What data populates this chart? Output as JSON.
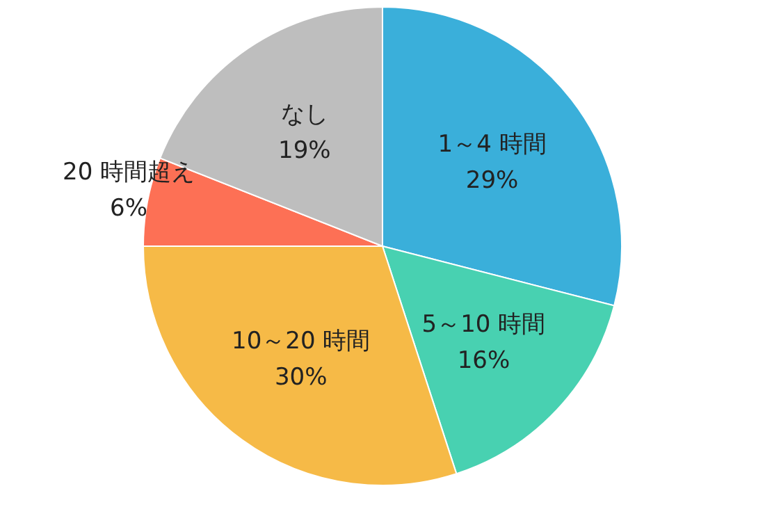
{
  "chart_data": {
    "type": "pie",
    "categories": [
      "1～4 時間",
      "5～10 時間",
      "10～20 時間",
      "20 時間超え",
      "なし"
    ],
    "values": [
      29,
      16,
      30,
      6,
      19
    ],
    "value_labels": [
      "29%",
      "16%",
      "30%",
      "6%",
      "19%"
    ],
    "colors": [
      "#3aafda",
      "#48d1b1",
      "#f6ba47",
      "#fd7055",
      "#bebebe"
    ]
  }
}
